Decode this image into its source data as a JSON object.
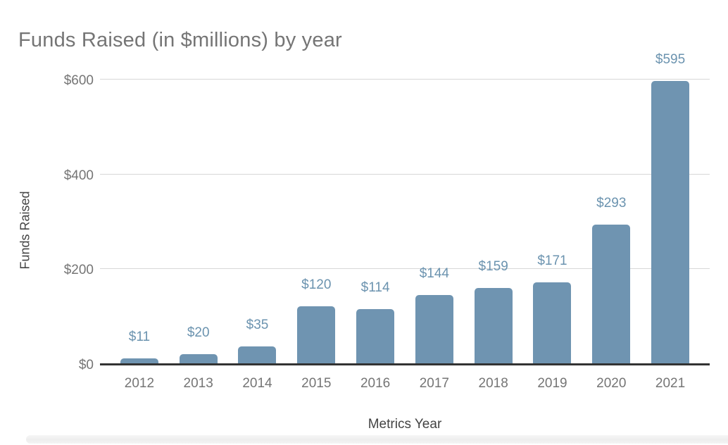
{
  "chart_data": {
    "type": "bar",
    "title": "Funds Raised (in $millions) by year",
    "xlabel": "Metrics Year",
    "ylabel": "Funds Raised",
    "categories": [
      "2012",
      "2013",
      "2014",
      "2015",
      "2016",
      "2017",
      "2018",
      "2019",
      "2020",
      "2021"
    ],
    "values": [
      11,
      20,
      35,
      120,
      114,
      144,
      159,
      171,
      293,
      595
    ],
    "data_labels": [
      "$11",
      "$20",
      "$35",
      "$120",
      "$114",
      "$144",
      "$159",
      "$171",
      "$293",
      "$595"
    ],
    "y_ticks": [
      {
        "label": "$0",
        "value": 0
      },
      {
        "label": "$200",
        "value": 200
      },
      {
        "label": "$400",
        "value": 400
      },
      {
        "label": "$600",
        "value": 600
      }
    ],
    "ylim": [
      0,
      600
    ],
    "grid": true,
    "legend_position": "none",
    "colors": {
      "bar": "#6f94b1",
      "data_label": "#6b93af",
      "grid_line": "#d7d7d7",
      "axis_line": "#333333",
      "tick_label": "#757575",
      "title": "#757575",
      "axis_title": "#434343",
      "background": "#ffffff"
    }
  }
}
